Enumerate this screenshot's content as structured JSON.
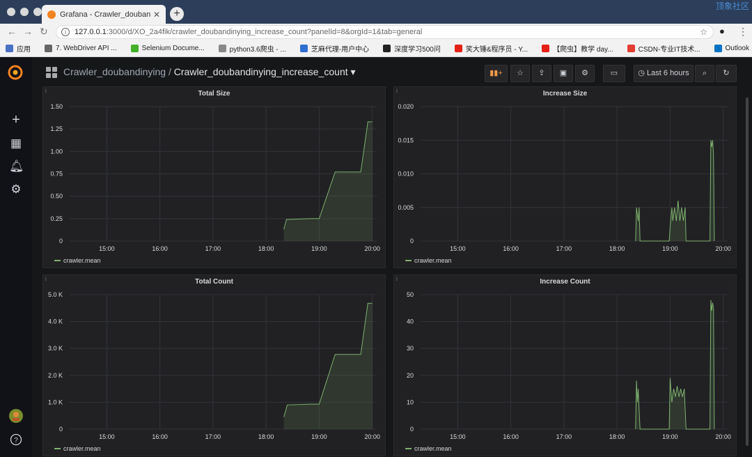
{
  "browser": {
    "tab_title": "Grafana - Crawler_doubandinying",
    "url_host": "127.0.0.1",
    "url_rest": ":3000/d/XO_2a4fik/crawler_doubandinying_increase_count?panelId=8&orgId=1&tab=general",
    "corner_text": "顶象社区",
    "bookmarks": [
      {
        "label": "应用",
        "icon": "apps-icon",
        "color": "#4a72c4"
      },
      {
        "label": "7. WebDriver API ...",
        "icon": "page-icon",
        "color": "#666666"
      },
      {
        "label": "Selenium Docume...",
        "icon": "selenium-icon",
        "color": "#43b02a"
      },
      {
        "label": "python3.6爬虫 - ...",
        "icon": "page-icon",
        "color": "#888888"
      },
      {
        "label": "芝麻代理-用户中心",
        "icon": "globe-icon",
        "color": "#2f6fd1"
      },
      {
        "label": "深度学习500问",
        "icon": "github-icon",
        "color": "#222222"
      },
      {
        "label": "笑大锤&程序员 - Y...",
        "icon": "youtube-icon",
        "color": "#e62117"
      },
      {
        "label": "【爬虫】教学 day...",
        "icon": "youtube-icon",
        "color": "#e62117"
      },
      {
        "label": "CSDN-专业IT技术...",
        "icon": "csdn-icon",
        "color": "#e33e33"
      },
      {
        "label": "Outlook",
        "icon": "outlook-icon",
        "color": "#0072c6"
      }
    ]
  },
  "header": {
    "folder": "Crawler_doubandinying",
    "separator": " / ",
    "dashboard": "Crawler_doubandinying_increase_count",
    "time_range": "Last 6 hours"
  },
  "colors": {
    "series": "#7eb26d",
    "grid": "#333438",
    "axis_text": "#d8d9da"
  },
  "chart_data": [
    {
      "type": "area",
      "title": "Total Size",
      "x_ticks": [
        "15:00",
        "16:00",
        "17:00",
        "18:00",
        "19:00",
        "20:00"
      ],
      "y_ticks": [
        "0",
        "0.25",
        "0.50",
        "0.75",
        "1.00",
        "1.25",
        "1.50"
      ],
      "ylim": [
        0,
        1.5
      ],
      "legend": "crawler.mean",
      "series": [
        {
          "name": "crawler.mean",
          "points": [
            [
              "18:20",
              0.13
            ],
            [
              "18:23",
              0.24
            ],
            [
              "18:50",
              0.25
            ],
            [
              "19:00",
              0.25
            ],
            [
              "19:18",
              0.77
            ],
            [
              "19:47",
              0.77
            ],
            [
              "19:55",
              1.33
            ],
            [
              "20:00",
              1.33
            ]
          ]
        }
      ]
    },
    {
      "type": "area",
      "title": "Increase Size",
      "x_ticks": [
        "15:00",
        "16:00",
        "17:00",
        "18:00",
        "19:00",
        "20:00"
      ],
      "y_ticks": [
        "0",
        "0.005",
        "0.010",
        "0.015",
        "0.020"
      ],
      "ylim": [
        0,
        0.02
      ],
      "legend": "crawler.mean",
      "series": [
        {
          "name": "crawler.mean",
          "points": [
            [
              "18:21",
              0
            ],
            [
              "18:22",
              0.005
            ],
            [
              "18:24",
              0.003
            ],
            [
              "18:25",
              0.005
            ],
            [
              "18:26",
              0
            ],
            [
              "18:59",
              0
            ],
            [
              "19:00",
              0.002
            ],
            [
              "19:02",
              0.005
            ],
            [
              "19:03",
              0.003
            ],
            [
              "19:05",
              0.005
            ],
            [
              "19:07",
              0.003
            ],
            [
              "19:09",
              0.006
            ],
            [
              "19:11",
              0.003
            ],
            [
              "19:13",
              0.005
            ],
            [
              "19:15",
              0.003
            ],
            [
              "19:17",
              0.005
            ],
            [
              "19:18",
              0
            ],
            [
              "19:45",
              0
            ],
            [
              "19:46",
              0.015
            ],
            [
              "19:47",
              0.014
            ],
            [
              "19:48",
              0.015
            ],
            [
              "19:49",
              0.013
            ],
            [
              "19:50",
              0
            ]
          ]
        }
      ]
    },
    {
      "type": "area",
      "title": "Total Count",
      "x_ticks": [
        "15:00",
        "16:00",
        "17:00",
        "18:00",
        "19:00",
        "20:00"
      ],
      "y_ticks": [
        "0",
        "1.0 K",
        "2.0 K",
        "3.0 K",
        "4.0 K",
        "5.0 K"
      ],
      "ylim": [
        0,
        5000
      ],
      "legend": "crawler.mean",
      "series": [
        {
          "name": "crawler.mean",
          "points": [
            [
              "18:20",
              450
            ],
            [
              "18:24",
              900
            ],
            [
              "18:50",
              930
            ],
            [
              "19:00",
              930
            ],
            [
              "19:18",
              2780
            ],
            [
              "19:47",
              2780
            ],
            [
              "19:55",
              4680
            ],
            [
              "20:00",
              4680
            ]
          ]
        }
      ]
    },
    {
      "type": "area",
      "title": "Increase Count",
      "x_ticks": [
        "15:00",
        "16:00",
        "17:00",
        "18:00",
        "19:00",
        "20:00"
      ],
      "y_ticks": [
        "0",
        "10",
        "20",
        "30",
        "40",
        "50"
      ],
      "ylim": [
        0,
        50
      ],
      "legend": "crawler.mean",
      "series": [
        {
          "name": "crawler.mean",
          "points": [
            [
              "18:21",
              0
            ],
            [
              "18:22",
              18
            ],
            [
              "18:23",
              10
            ],
            [
              "18:24",
              15
            ],
            [
              "18:25",
              7
            ],
            [
              "18:26",
              0
            ],
            [
              "18:59",
              0
            ],
            [
              "19:00",
              19
            ],
            [
              "19:02",
              10
            ],
            [
              "19:04",
              15
            ],
            [
              "19:06",
              12
            ],
            [
              "19:08",
              16
            ],
            [
              "19:10",
              12
            ],
            [
              "19:12",
              15
            ],
            [
              "19:14",
              12
            ],
            [
              "19:16",
              15
            ],
            [
              "19:18",
              0
            ],
            [
              "19:45",
              0
            ],
            [
              "19:46",
              48
            ],
            [
              "19:47",
              44
            ],
            [
              "19:48",
              47
            ],
            [
              "19:49",
              45
            ],
            [
              "19:50",
              0
            ]
          ]
        }
      ]
    }
  ]
}
